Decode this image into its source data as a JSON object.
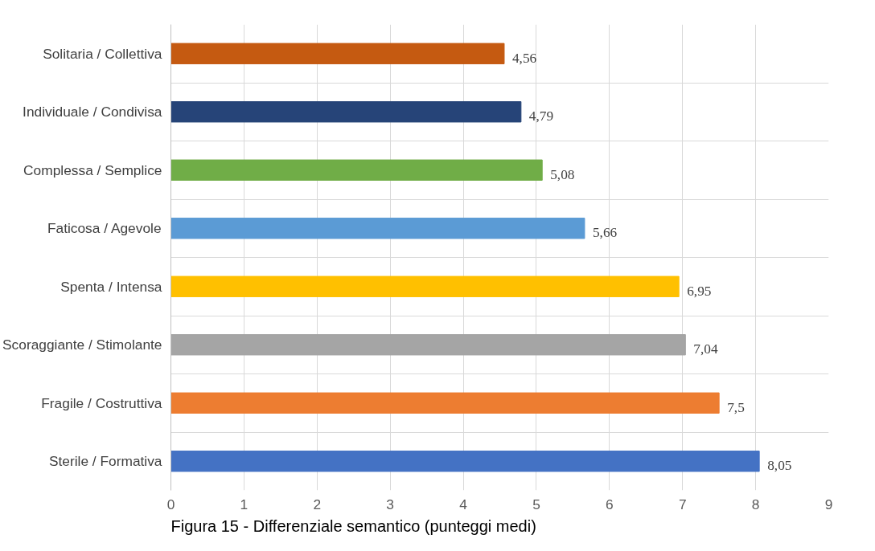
{
  "chart_data": {
    "type": "bar",
    "orientation": "horizontal",
    "categories": [
      "Solitaria / Collettiva",
      "Individuale / Condivisa",
      "Complessa / Semplice",
      "Faticosa / Agevole",
      "Spenta / Intensa",
      "Scoraggiante / Stimolante",
      "Fragile / Costruttiva",
      "Sterile / Formativa"
    ],
    "values": [
      4.56,
      4.79,
      5.08,
      5.66,
      6.95,
      7.04,
      7.5,
      8.05
    ],
    "value_labels": [
      "4,56",
      "4,79",
      "5,08",
      "5,66",
      "6,95",
      "7,04",
      "7,5",
      "8,05"
    ],
    "colors": [
      "#c55a11",
      "#264478",
      "#70ad47",
      "#5b9bd5",
      "#ffc000",
      "#a5a5a5",
      "#ed7d31",
      "#4472c4"
    ],
    "xlim": [
      0,
      9
    ],
    "xticks": [
      0,
      1,
      2,
      3,
      4,
      5,
      6,
      7,
      8,
      9
    ],
    "grid": true,
    "annotations": [
      "Figura 15 - Differenziale semantico (punteggi medi)"
    ]
  }
}
